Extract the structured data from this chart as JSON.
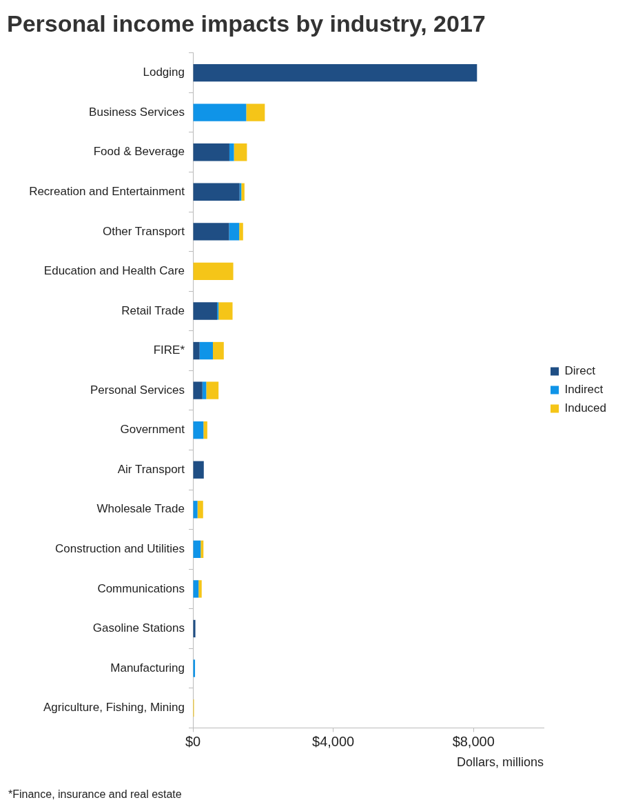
{
  "chart_data": {
    "type": "bar",
    "orientation": "horizontal",
    "stacked": true,
    "title": "Personal income impacts by industry, 2017",
    "xlabel": "Dollars, millions",
    "categories": [
      "Lodging",
      "Business Services",
      "Food & Beverage",
      "Recreation and Entertainment",
      "Other Transport",
      "Education and Health Care",
      "Retail Trade",
      "FIRE*",
      "Personal Services",
      "Government",
      "Air Transport",
      "Wholesale Trade",
      "Construction and Utilities",
      "Communications",
      "Gasoline Stations",
      "Manufacturing",
      "Agriculture, Fishing, Mining"
    ],
    "series": [
      {
        "name": "Direct",
        "color": "#1f4e84",
        "values": [
          8100,
          0,
          1040,
          1330,
          1030,
          0,
          690,
          190,
          270,
          0,
          310,
          0,
          0,
          0,
          70,
          0,
          0
        ]
      },
      {
        "name": "Indirect",
        "color": "#0f94e8",
        "values": [
          0,
          1520,
          130,
          50,
          290,
          0,
          40,
          380,
          110,
          300,
          0,
          130,
          220,
          160,
          0,
          60,
          0
        ]
      },
      {
        "name": "Induced",
        "color": "#f5c518",
        "values": [
          0,
          530,
          370,
          90,
          110,
          1150,
          400,
          310,
          350,
          110,
          0,
          160,
          80,
          90,
          0,
          0,
          30
        ]
      }
    ],
    "xlim": [
      0,
      10000
    ],
    "xticks": [
      {
        "value": 0,
        "label": "$0"
      },
      {
        "value": 4000,
        "label": "$4,000"
      },
      {
        "value": 8000,
        "label": "$8,000"
      }
    ],
    "grid": false,
    "legend": "right",
    "annotations": [
      "*Finance, insurance and real estate"
    ]
  }
}
